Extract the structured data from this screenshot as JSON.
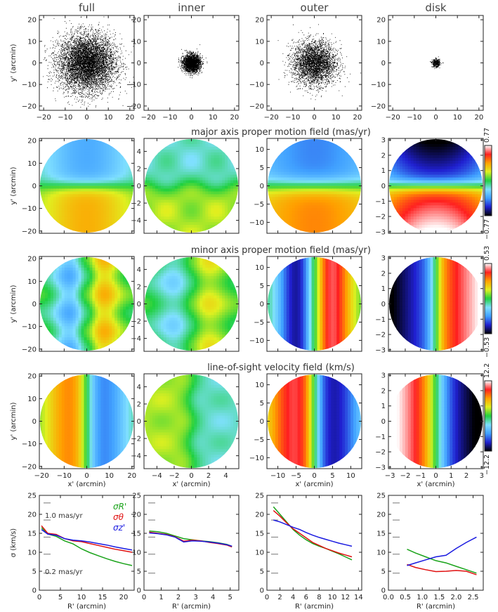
{
  "columns": [
    "full",
    "inner",
    "outer",
    "disk"
  ],
  "row_titles": [
    "",
    "major axis proper motion field (mas/yr)",
    "minor axis proper motion field (mas/yr)",
    "line-of-sight velocity field (km/s)",
    ""
  ],
  "labels": {
    "y_sky": "y' (arcmin)",
    "x_sky": "x' (arcmin)",
    "y_disp": "σ (km/s)",
    "x_disp": "R' (arcmin)"
  },
  "colorbars": [
    {
      "max": "0.77",
      "min": "−0.77"
    },
    {
      "max": "0.53",
      "min": "−0.53"
    },
    {
      "max": "12.2",
      "min": "−12.2"
    }
  ],
  "scale_annotations": {
    "top": "1.0 mas/yr",
    "bottom": "0.2 mas/yr"
  },
  "legend": [
    {
      "name": "σR'",
      "color": "#1aa31a"
    },
    {
      "name": "σθ",
      "color": "#e01010"
    },
    {
      "name": "σz'",
      "color": "#1a1ae0"
    }
  ],
  "chart_data": {
    "type": "line",
    "title": "",
    "xlabel": "R' (arcmin)",
    "ylabel": "σ (km/s)",
    "panels": [
      {
        "column": "full",
        "xlim": [
          0,
          22.5
        ],
        "ylim": [
          0,
          25
        ],
        "xticks": [
          0,
          5,
          10,
          15,
          20
        ],
        "yticks": [
          0,
          5,
          10,
          15,
          20,
          25
        ],
        "series": [
          {
            "name": "σR'",
            "x": [
              0.5,
              2,
              4,
              6,
              8,
              10,
              12,
              14,
              16,
              18,
              20,
              22
            ],
            "y": [
              16.5,
              14.8,
              14.2,
              13.0,
              12.2,
              10.9,
              9.9,
              9.1,
              8.3,
              7.6,
              7.0,
              6.5
            ]
          },
          {
            "name": "σθ",
            "x": [
              0.5,
              2,
              4,
              6,
              8,
              10,
              12,
              14,
              16,
              18,
              20,
              22
            ],
            "y": [
              17.0,
              15.0,
              14.7,
              13.6,
              13.0,
              12.8,
              12.3,
              11.8,
              11.3,
              10.8,
              10.4,
              10.0
            ]
          },
          {
            "name": "σz'",
            "x": [
              0.5,
              2,
              4,
              6,
              8,
              10,
              12,
              14,
              16,
              18,
              20,
              22
            ],
            "y": [
              16.0,
              14.8,
              14.5,
              13.6,
              13.2,
              13.0,
              12.7,
              12.3,
              11.9,
              11.4,
              11.0,
              10.6
            ]
          }
        ]
      },
      {
        "column": "inner",
        "xlim": [
          0,
          5.5
        ],
        "ylim": [
          0,
          25
        ],
        "xticks": [
          0,
          1,
          2,
          3,
          4,
          5
        ],
        "yticks": [
          0,
          5,
          10,
          15,
          20,
          25
        ],
        "series": [
          {
            "name": "σR'",
            "x": [
              0.3,
              0.8,
              1.3,
              1.8,
              2.3,
              2.8,
              3.3,
              3.8,
              4.3,
              4.8,
              5.1
            ],
            "y": [
              15.6,
              15.4,
              15.0,
              14.3,
              13.6,
              13.3,
              13.0,
              12.8,
              12.5,
              12.1,
              11.6
            ]
          },
          {
            "name": "σθ",
            "x": [
              0.3,
              0.8,
              1.3,
              1.8,
              2.3,
              2.8,
              3.3,
              3.8,
              4.3,
              4.8,
              5.1
            ],
            "y": [
              15.3,
              15.0,
              14.7,
              14.1,
              12.9,
              13.2,
              13.0,
              12.6,
              12.3,
              11.9,
              11.4
            ]
          },
          {
            "name": "σz'",
            "x": [
              0.3,
              0.8,
              1.3,
              1.8,
              2.3,
              2.8,
              3.3,
              3.8,
              4.3,
              4.8,
              5.1
            ],
            "y": [
              15.1,
              14.9,
              14.6,
              14.0,
              12.7,
              13.0,
              12.9,
              12.7,
              12.4,
              12.0,
              11.6
            ]
          }
        ]
      },
      {
        "column": "outer",
        "xlim": [
          0,
          14.5
        ],
        "ylim": [
          0,
          25
        ],
        "xticks": [
          0,
          2,
          4,
          6,
          8,
          10,
          12,
          14
        ],
        "yticks": [
          0,
          5,
          10,
          15,
          20,
          25
        ],
        "series": [
          {
            "name": "σR'",
            "x": [
              1,
              2,
              3,
              4,
              5,
              6,
              7,
              8,
              9,
              10,
              11,
              12,
              13
            ],
            "y": [
              22.0,
              20.0,
              18.0,
              16.0,
              14.5,
              13.3,
              12.3,
              11.6,
              11.0,
              10.3,
              9.6,
              8.8,
              8.0
            ]
          },
          {
            "name": "σθ",
            "x": [
              1,
              2,
              3,
              4,
              5,
              6,
              7,
              8,
              9,
              10,
              11,
              12,
              13
            ],
            "y": [
              21.0,
              19.5,
              17.8,
              16.2,
              15.0,
              13.8,
              12.6,
              11.8,
              11.0,
              10.4,
              9.8,
              9.3,
              8.8
            ]
          },
          {
            "name": "σz'",
            "x": [
              1,
              2,
              3,
              4,
              5,
              6,
              7,
              8,
              9,
              10,
              11,
              12,
              13
            ],
            "y": [
              18.5,
              18.0,
              17.3,
              16.6,
              16.0,
              15.2,
              14.5,
              13.9,
              13.4,
              12.9,
              12.4,
              12.0,
              11.6
            ]
          }
        ]
      },
      {
        "column": "disk",
        "xlim": [
          0,
          2.8
        ],
        "ylim": [
          0,
          25
        ],
        "xticks": [
          0.0,
          0.5,
          1.0,
          1.5,
          2.0,
          2.5
        ],
        "xticklabels": [
          "0.0",
          "0.5",
          "1.0",
          "1.5",
          "2.0",
          "2.5"
        ],
        "yticks": [
          0,
          5,
          10,
          15,
          20,
          25
        ],
        "series": [
          {
            "name": "σR'",
            "x": [
              0.55,
              0.8,
              1.1,
              1.4,
              1.7,
              2.0,
              2.3,
              2.6
            ],
            "y": [
              10.8,
              9.8,
              8.8,
              7.8,
              7.2,
              6.3,
              5.4,
              4.5
            ]
          },
          {
            "name": "σθ",
            "x": [
              0.55,
              0.8,
              1.1,
              1.4,
              1.7,
              2.0,
              2.3,
              2.6
            ],
            "y": [
              6.8,
              6.0,
              5.4,
              4.9,
              5.0,
              5.2,
              5.0,
              4.1
            ]
          },
          {
            "name": "σz'",
            "x": [
              0.55,
              0.8,
              1.1,
              1.4,
              1.7,
              2.0,
              2.3,
              2.6
            ],
            "y": [
              6.5,
              7.2,
              8.0,
              8.8,
              9.2,
              11.0,
              12.6,
              14.0
            ]
          }
        ]
      }
    ],
    "scatter_panels": [
      {
        "column": "full",
        "lim": [
          -22,
          22
        ],
        "ticks": [
          -20,
          -10,
          0,
          10,
          20
        ],
        "sigma": 6.5,
        "n": 9000
      },
      {
        "column": "inner",
        "lim": [
          -22,
          22
        ],
        "ticks": [
          -20,
          -10,
          0,
          10,
          20
        ],
        "sigma": 2.0,
        "n": 2500
      },
      {
        "column": "outer",
        "lim": [
          -22,
          22
        ],
        "ticks": [
          -20,
          -10,
          0,
          10,
          20
        ],
        "sigma": 5.0,
        "n": 3500
      },
      {
        "column": "disk",
        "lim": [
          -22,
          22
        ],
        "ticks": [
          -20,
          -10,
          0,
          10,
          20
        ],
        "sigma": 0.9,
        "n": 400
      }
    ],
    "map_columns": [
      {
        "column": "full",
        "lim": [
          -21,
          21
        ],
        "ticks": [
          -20,
          -10,
          0,
          10,
          20
        ]
      },
      {
        "column": "inner",
        "lim": [
          -5.5,
          5.5
        ],
        "ticks": [
          -4,
          -2,
          0,
          2,
          4
        ]
      },
      {
        "column": "outer",
        "lim": [
          -13,
          13
        ],
        "ticks": [
          -10,
          -5,
          0,
          5,
          10
        ]
      },
      {
        "column": "disk",
        "lim": [
          -3.1,
          3.1
        ],
        "ticks": [
          -3,
          -2,
          -1,
          0,
          1,
          2,
          3
        ]
      }
    ],
    "colormap": [
      "#000000",
      "#2020d0",
      "#40a0ff",
      "#80e0ff",
      "#20d040",
      "#e0f020",
      "#ffa000",
      "#ff2020",
      "#ffffff"
    ]
  }
}
